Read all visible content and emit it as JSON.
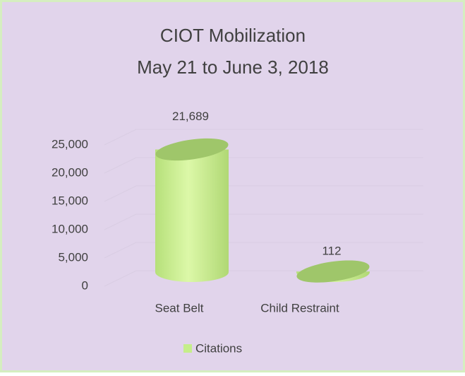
{
  "chart_data": {
    "type": "bar3d",
    "title": "CIOT Mobilization",
    "subtitle": "May 21 to June 3, 2018",
    "categories": [
      "Seat Belt",
      "Child Restraint"
    ],
    "series": [
      {
        "name": "Citations",
        "color": "#c5ee8a",
        "values": [
          21689,
          112
        ],
        "value_labels": [
          "21,689",
          "112"
        ]
      }
    ],
    "ylim": [
      0,
      25000
    ],
    "yticks": [
      0,
      {
        "value": 5000,
        "label": "5,000"
      },
      {
        "value": 10000,
        "label": "10,000"
      },
      {
        "value": 15000,
        "label": "15,000"
      },
      {
        "value": 20000,
        "label": "20,000"
      },
      {
        "value": 25000,
        "label": "25,000"
      }
    ],
    "grid": true,
    "legend": "bottom"
  }
}
